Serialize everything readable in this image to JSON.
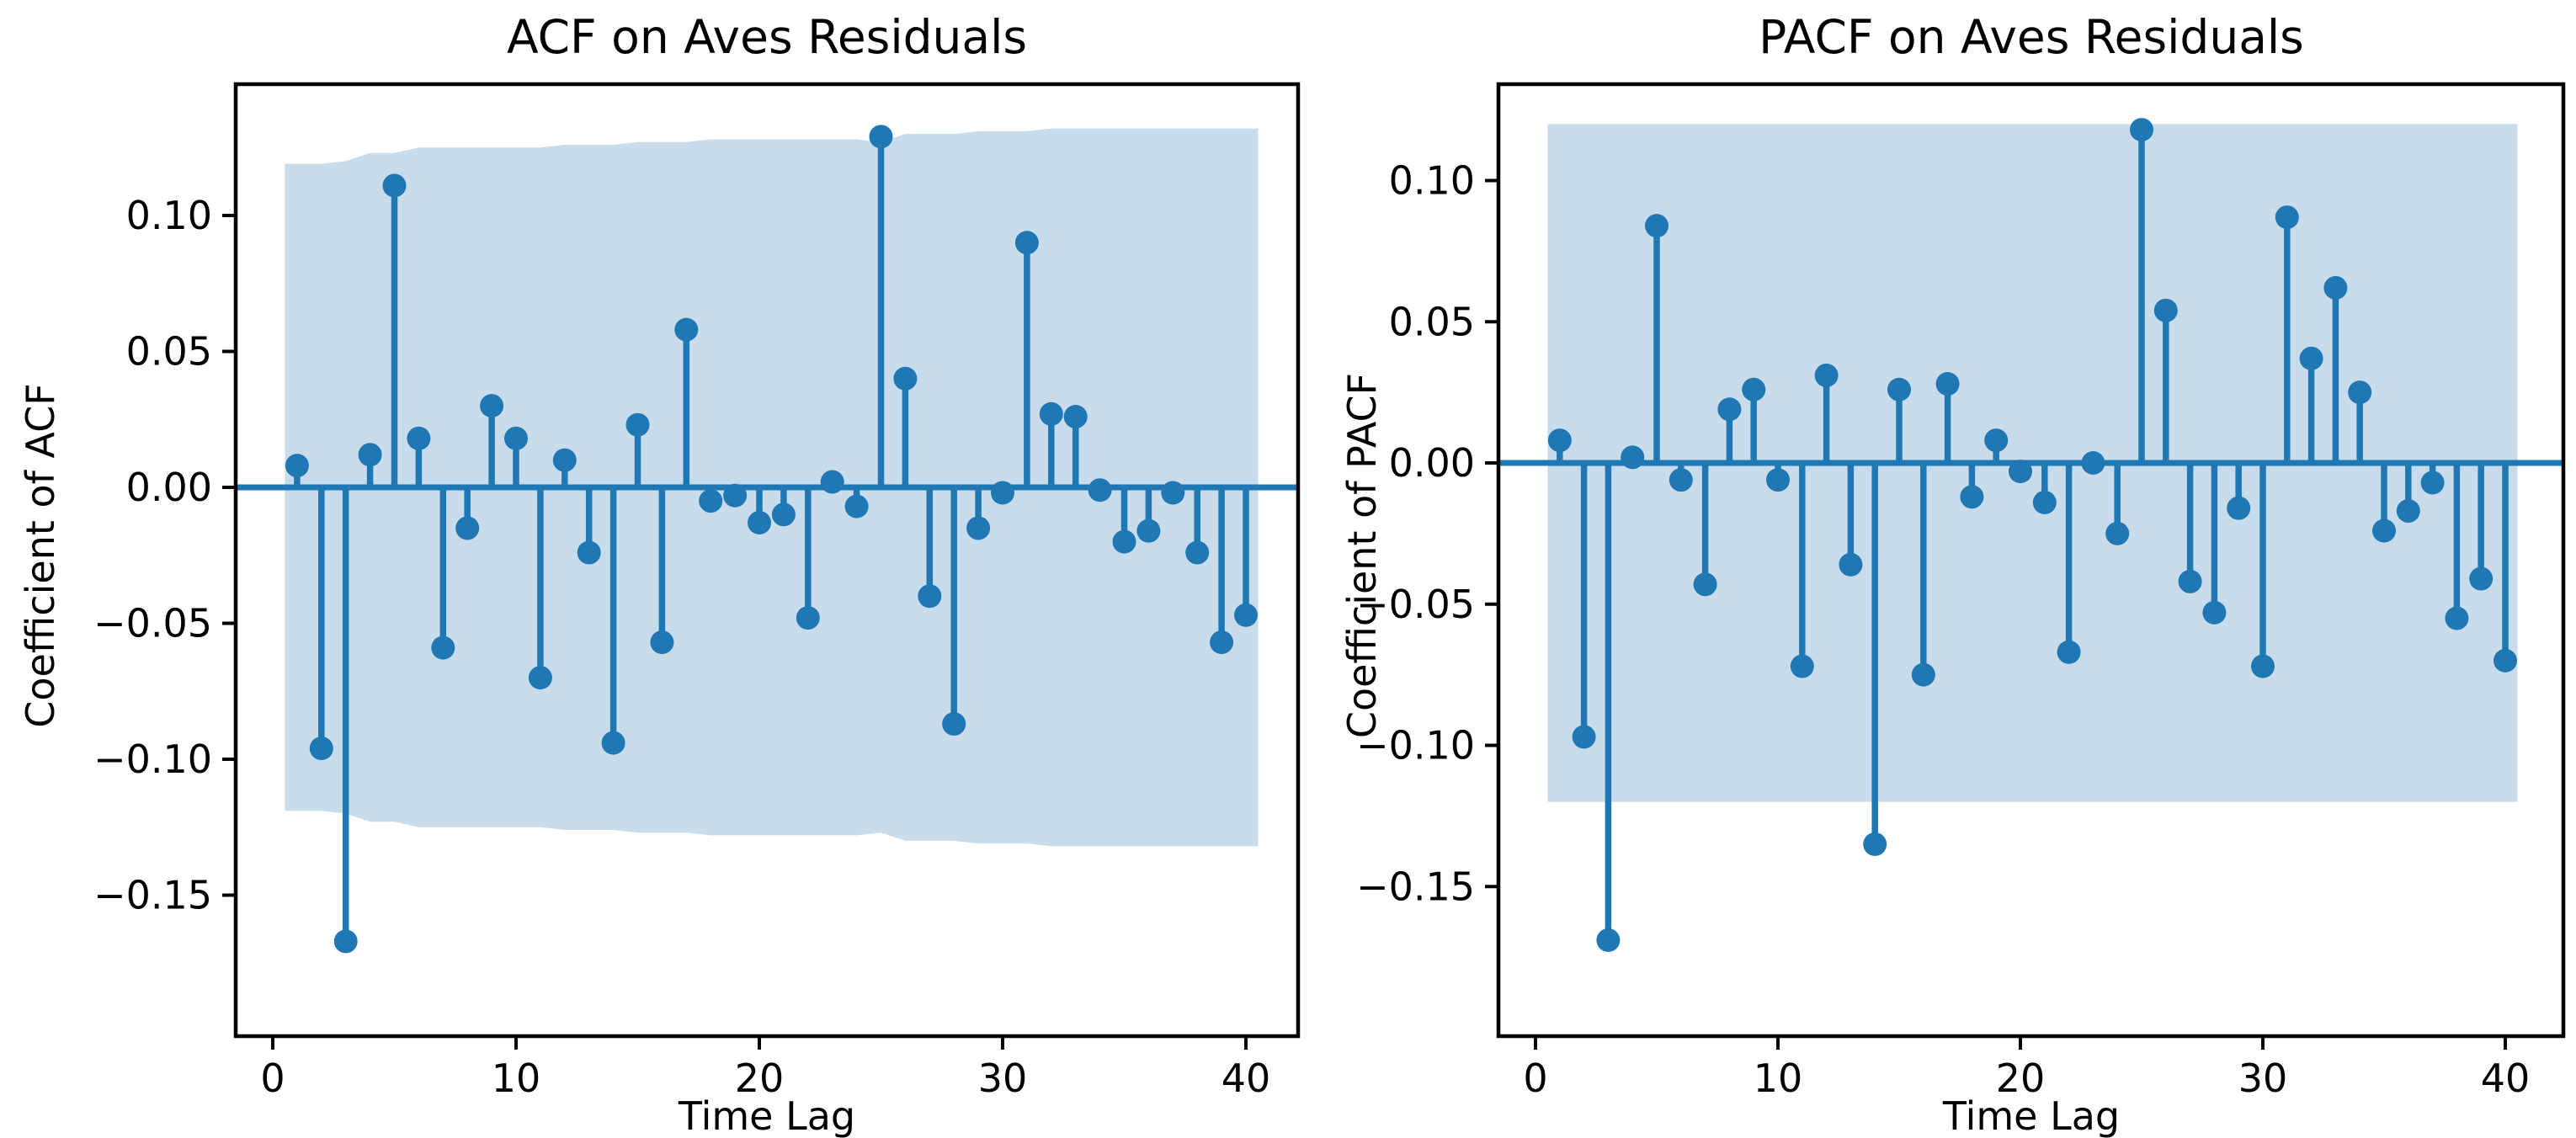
{
  "figure": {
    "background": "#ffffff",
    "accent_color": "#1f77b4",
    "band_color": "#c8dcec",
    "spine_color": "#000000",
    "text_color": "#000000"
  },
  "chart_data": [
    {
      "type": "stem",
      "title": "ACF on Aves Residuals",
      "xlabel": "Time Lag",
      "ylabel": "Coefficient of ACF",
      "x": [
        1,
        2,
        3,
        4,
        5,
        6,
        7,
        8,
        9,
        10,
        11,
        12,
        13,
        14,
        15,
        16,
        17,
        18,
        19,
        20,
        21,
        22,
        23,
        24,
        25,
        26,
        27,
        28,
        29,
        30,
        31,
        32,
        33,
        34,
        35,
        36,
        37,
        38,
        39,
        40
      ],
      "values": [
        0.008,
        -0.096,
        -0.167,
        0.012,
        0.111,
        0.018,
        -0.059,
        -0.015,
        0.03,
        0.018,
        -0.07,
        0.01,
        -0.024,
        -0.094,
        0.023,
        -0.057,
        0.058,
        -0.005,
        -0.003,
        -0.013,
        -0.01,
        -0.048,
        0.002,
        -0.007,
        0.129,
        0.04,
        -0.04,
        -0.087,
        -0.015,
        -0.002,
        0.09,
        0.027,
        0.026,
        -0.001,
        -0.02,
        -0.016,
        -0.002,
        -0.024,
        -0.057,
        -0.047
      ],
      "conf_band": {
        "x_start": 0.5,
        "x_end": 40.5,
        "symmetric": true,
        "upper": [
          0.119,
          0.119,
          0.12,
          0.123,
          0.123,
          0.125,
          0.125,
          0.125,
          0.125,
          0.125,
          0.125,
          0.126,
          0.126,
          0.126,
          0.127,
          0.127,
          0.127,
          0.128,
          0.128,
          0.128,
          0.128,
          0.128,
          0.128,
          0.128,
          0.127,
          0.13,
          0.13,
          0.13,
          0.131,
          0.131,
          0.131,
          0.132,
          0.132,
          0.132,
          0.132,
          0.132,
          0.132,
          0.132,
          0.132,
          0.132
        ]
      },
      "xticks": {
        "values": [
          0,
          10,
          20,
          30,
          40
        ],
        "labels": [
          "0",
          "10",
          "20",
          "30",
          "40"
        ]
      },
      "yticks": {
        "values": [
          0.1,
          0.05,
          0.0,
          -0.05,
          -0.1,
          -0.15
        ],
        "labels": [
          "0.10",
          "0.05",
          "0.00",
          "−0.05",
          "−0.10",
          "−0.15"
        ]
      },
      "xlim": [
        -1.5,
        42.1
      ],
      "ylim": [
        -0.202,
        0.148
      ],
      "grid": false,
      "legend": null
    },
    {
      "type": "stem",
      "title": "PACF on Aves Residuals",
      "xlabel": "Time Lag",
      "ylabel": "Coefficient of PACF",
      "x": [
        1,
        2,
        3,
        4,
        5,
        6,
        7,
        8,
        9,
        10,
        11,
        12,
        13,
        14,
        15,
        16,
        17,
        18,
        19,
        20,
        21,
        22,
        23,
        24,
        25,
        26,
        27,
        28,
        29,
        30,
        31,
        32,
        33,
        34,
        35,
        36,
        37,
        38,
        39,
        40
      ],
      "values": [
        0.008,
        -0.097,
        -0.169,
        0.002,
        0.084,
        -0.006,
        -0.043,
        0.019,
        0.026,
        -0.006,
        -0.072,
        0.031,
        -0.036,
        -0.135,
        0.026,
        -0.075,
        0.028,
        -0.012,
        0.008,
        -0.003,
        -0.014,
        -0.067,
        0.0,
        -0.025,
        0.118,
        0.054,
        -0.042,
        -0.053,
        -0.016,
        -0.072,
        0.087,
        0.037,
        0.062,
        0.025,
        -0.024,
        -0.017,
        -0.007,
        -0.055,
        -0.041,
        -0.07
      ],
      "conf_band": {
        "x_start": 0.5,
        "x_end": 40.5,
        "symmetric": true,
        "upper": [
          0.12,
          0.12,
          0.12,
          0.12,
          0.12,
          0.12,
          0.12,
          0.12,
          0.12,
          0.12,
          0.12,
          0.12,
          0.12,
          0.12,
          0.12,
          0.12,
          0.12,
          0.12,
          0.12,
          0.12,
          0.12,
          0.12,
          0.12,
          0.12,
          0.12,
          0.12,
          0.12,
          0.12,
          0.12,
          0.12,
          0.12,
          0.12,
          0.12,
          0.12,
          0.12,
          0.12,
          0.12,
          0.12,
          0.12,
          0.12
        ]
      },
      "xticks": {
        "values": [
          0,
          10,
          20,
          30,
          40
        ],
        "labels": [
          "0",
          "10",
          "20",
          "30",
          "40"
        ]
      },
      "yticks": {
        "values": [
          0.1,
          0.05,
          0.0,
          -0.05,
          -0.1,
          -0.15
        ],
        "labels": [
          "0.10",
          "0.05",
          "0.00",
          "−0.05",
          "−0.10",
          "−0.15"
        ]
      },
      "xlim": [
        -1.5,
        42.4
      ],
      "ylim": [
        -0.203,
        0.134
      ],
      "grid": false,
      "legend": null
    }
  ]
}
